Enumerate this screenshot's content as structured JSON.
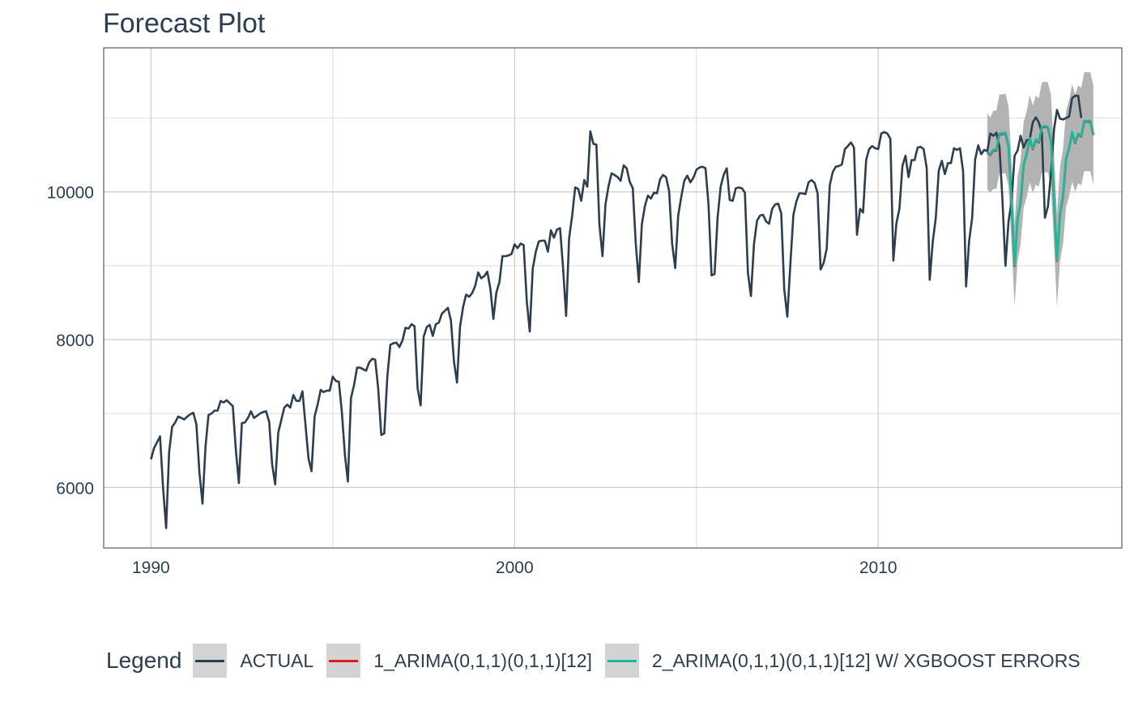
{
  "chart_data": {
    "type": "line",
    "title": "Forecast Plot",
    "xlabel": "",
    "ylabel": "",
    "xlim": [
      1988.7,
      2016.7
    ],
    "ylim": [
      5180,
      11950
    ],
    "x_ticks": [
      1990,
      2000,
      2010
    ],
    "y_ticks": [
      6000,
      8000,
      10000
    ],
    "grid": true,
    "legend": {
      "title": "Legend",
      "placement": "bottom",
      "entries": [
        "ACTUAL",
        "1_ARIMA(0,1,1)(0,1,1)[12]",
        "2_ARIMA(0,1,1)(0,1,1)[12] W/ XGBOOST ERRORS"
      ]
    },
    "series": [
      {
        "name": "ACTUAL",
        "color": "#2c3e50",
        "x_start": 1990.0,
        "step": 0.0833333,
        "values": [
          6380,
          6530,
          6610,
          6690,
          6000,
          5450,
          6480,
          6820,
          6880,
          6960,
          6940,
          6920,
          6960,
          6990,
          7010,
          6850,
          6200,
          5780,
          6550,
          6980,
          7000,
          7040,
          7040,
          7170,
          7150,
          7180,
          7140,
          7100,
          6520,
          6060,
          6870,
          6880,
          6940,
          7030,
          6940,
          6970,
          7000,
          7020,
          7030,
          6890,
          6310,
          6040,
          6740,
          6910,
          7080,
          7120,
          7080,
          7250,
          7170,
          7170,
          7300,
          6840,
          6390,
          6220,
          6960,
          7120,
          7320,
          7290,
          7310,
          7310,
          7500,
          7440,
          7430,
          7030,
          6440,
          6080,
          7210,
          7380,
          7620,
          7620,
          7600,
          7580,
          7690,
          7740,
          7730,
          7340,
          6710,
          6730,
          7500,
          7930,
          7950,
          7960,
          7900,
          7990,
          8160,
          8150,
          8210,
          8180,
          7340,
          7110,
          8040,
          8170,
          8200,
          8050,
          8210,
          8230,
          8350,
          8390,
          8430,
          8260,
          7700,
          7420,
          8170,
          8440,
          8610,
          8580,
          8630,
          8730,
          8910,
          8830,
          8860,
          8920,
          8690,
          8280,
          8640,
          8780,
          9130,
          9130,
          9140,
          9160,
          9290,
          9240,
          9300,
          9280,
          8530,
          8110,
          8960,
          9190,
          9330,
          9340,
          9340,
          9190,
          9480,
          9380,
          9490,
          9510,
          8980,
          8320,
          9370,
          9680,
          10060,
          10040,
          9880,
          10160,
          10070,
          10820,
          10650,
          10640,
          9560,
          9130,
          9830,
          10080,
          10250,
          10230,
          10200,
          10150,
          10360,
          10320,
          10140,
          10050,
          9300,
          8780,
          9560,
          9810,
          9950,
          9910,
          9990,
          9980,
          10170,
          10230,
          10200,
          10010,
          9300,
          8970,
          9680,
          9930,
          10150,
          10220,
          10130,
          10190,
          10300,
          10330,
          10340,
          10320,
          9830,
          8870,
          8890,
          9650,
          10070,
          10230,
          10320,
          9890,
          9880,
          10050,
          10060,
          10050,
          9990,
          8900,
          8590,
          9290,
          9610,
          9680,
          9690,
          9600,
          9570,
          9770,
          9830,
          9840,
          9710,
          8680,
          8310,
          9010,
          9690,
          9870,
          9980,
          9980,
          9970,
          10130,
          10160,
          10120,
          9980,
          8950,
          9040,
          9230,
          10090,
          10270,
          10340,
          10350,
          10370,
          10580,
          10620,
          10670,
          10600,
          9420,
          9770,
          9720,
          10430,
          10580,
          10620,
          10590,
          10580,
          10790,
          10810,
          10790,
          10720,
          9070,
          9580,
          9770,
          10350,
          10490,
          10200,
          10430,
          10430,
          10600,
          10610,
          10580,
          10320,
          8810,
          9330,
          9650,
          10290,
          10420,
          10240,
          10390,
          10390,
          10590,
          10570,
          10590,
          10280,
          8720,
          9330,
          9650,
          10440,
          10630,
          10510,
          10570,
          10550,
          10790,
          10760,
          10800,
          10610,
          9890,
          9000,
          9600,
          9870,
          10490,
          10560,
          10760,
          10600,
          10700,
          10710,
          10940,
          11010,
          10940,
          10800,
          9650,
          9800,
          10250,
          10840,
          11110,
          10990,
          10980,
          11000,
          11020,
          11270,
          11300,
          11300,
          11000
        ]
      },
      {
        "name": "1_ARIMA(0,1,1)(0,1,1)[12]",
        "color": "#e31a1c",
        "x_start": 2013.0,
        "step": 0.0833333,
        "values": [
          10530,
          10500,
          10560,
          10560,
          10780,
          10780,
          10790,
          10620,
          9850,
          9000,
          9640,
          9860,
          10370,
          10510,
          10720,
          10580,
          10700,
          10670,
          10870,
          10880,
          10870,
          10690,
          9910,
          9070,
          9700,
          9940,
          10450,
          10590,
          10800,
          10660,
          10780,
          10750,
          10950,
          10950,
          10950,
          10770
        ]
      },
      {
        "name": "2_ARIMA(0,1,1)(0,1,1)[12] W/ XGBOOST ERRORS",
        "color": "#18bc9c",
        "x_start": 2013.0,
        "step": 0.0833333,
        "values": [
          10540,
          10510,
          10570,
          10570,
          10790,
          10790,
          10800,
          10630,
          9860,
          9010,
          9650,
          9870,
          10380,
          10520,
          10730,
          10590,
          10710,
          10680,
          10880,
          10890,
          10880,
          10700,
          9920,
          9080,
          9710,
          9950,
          10460,
          10600,
          10810,
          10670,
          10790,
          10760,
          10960,
          10960,
          10960,
          10780
        ]
      }
    ],
    "confidence_band": {
      "x_start": 2013.0,
      "step": 0.0833333,
      "color": "#b3b3b3",
      "lower": [
        10030,
        9990,
        10040,
        10040,
        10250,
        10250,
        10250,
        10080,
        9300,
        8450,
        9070,
        9290,
        9790,
        9930,
        10130,
        9990,
        10100,
        10070,
        10260,
        10270,
        10260,
        10070,
        9290,
        8450,
        9060,
        9300,
        9800,
        9940,
        10140,
        10000,
        10120,
        10090,
        10280,
        10280,
        10280,
        10100
      ],
      "upper": [
        11060,
        11010,
        11100,
        11100,
        11320,
        11320,
        11330,
        11160,
        10400,
        9560,
        10210,
        10430,
        10950,
        11090,
        11310,
        11170,
        11300,
        11270,
        11480,
        11490,
        11480,
        11310,
        10530,
        9690,
        10340,
        10580,
        11100,
        11240,
        11460,
        11320,
        11440,
        11410,
        11620,
        11620,
        11620,
        11440
      ]
    }
  }
}
